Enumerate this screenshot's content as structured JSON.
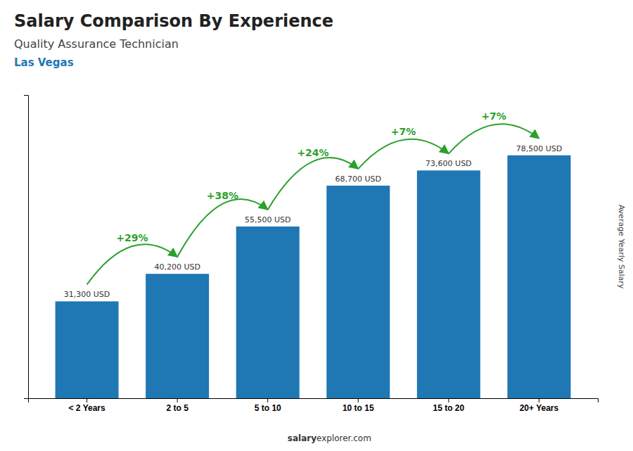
{
  "chart_data": {
    "type": "bar",
    "title": "Salary Comparison By Experience",
    "subtitle": "Quality Assurance Technician",
    "city": "Las Vegas",
    "categories": [
      "< 2 Years",
      "2 to 5",
      "5 to 10",
      "10 to 15",
      "15 to 20",
      "20+ Years"
    ],
    "values": [
      31300,
      40200,
      55500,
      68700,
      73600,
      78500
    ],
    "value_labels": [
      "31,300 USD",
      "40,200 USD",
      "55,500 USD",
      "68,700 USD",
      "73,600 USD",
      "78,500 USD"
    ],
    "data_labels": true,
    "annotations": [
      "+29%",
      "+38%",
      "+24%",
      "+7%",
      "+7%"
    ],
    "ylabel": "Average Yearly Salary",
    "footer": [
      "salary",
      "explorer.com"
    ],
    "ylim": [
      0,
      98000
    ],
    "tick_labels": "x",
    "grid": false
  }
}
